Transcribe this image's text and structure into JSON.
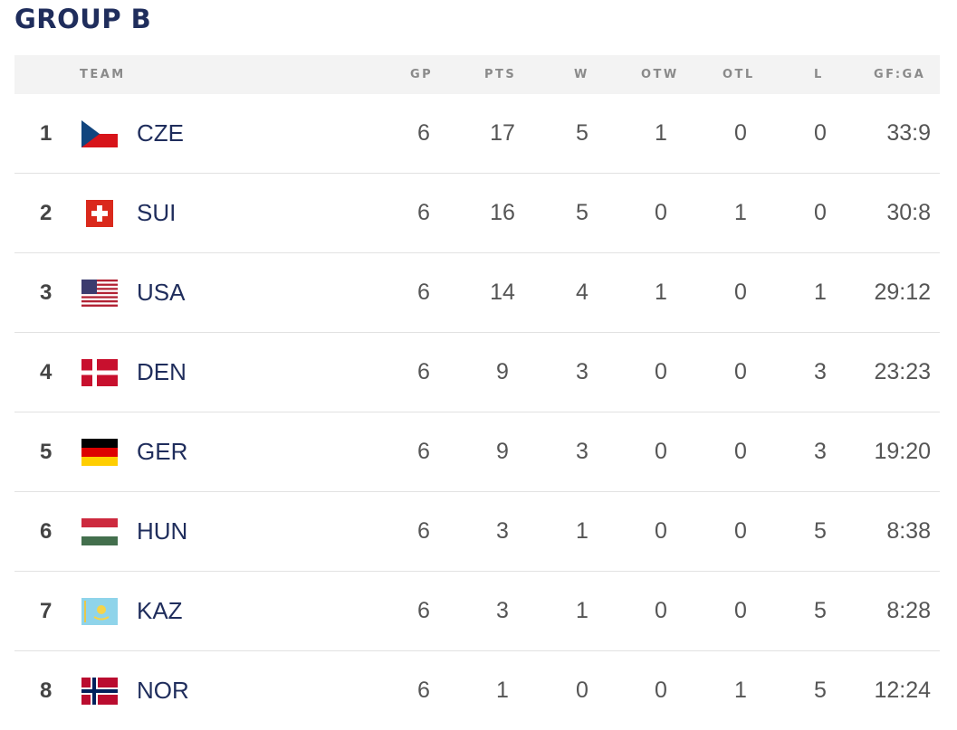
{
  "title": "GROUP B",
  "columns": {
    "team": "TEAM",
    "gp": "GP",
    "pts": "PTS",
    "w": "W",
    "otw": "OTW",
    "otl": "OTL",
    "l": "L",
    "gfga": "GF:GA"
  },
  "rows": [
    {
      "rank": "1",
      "flag": "cze-flag-icon",
      "team": "CZE",
      "gp": "6",
      "pts": "17",
      "w": "5",
      "otw": "1",
      "otl": "0",
      "l": "0",
      "gfga": "33:9"
    },
    {
      "rank": "2",
      "flag": "sui-flag-icon",
      "team": "SUI",
      "gp": "6",
      "pts": "16",
      "w": "5",
      "otw": "0",
      "otl": "1",
      "l": "0",
      "gfga": "30:8"
    },
    {
      "rank": "3",
      "flag": "usa-flag-icon",
      "team": "USA",
      "gp": "6",
      "pts": "14",
      "w": "4",
      "otw": "1",
      "otl": "0",
      "l": "1",
      "gfga": "29:12"
    },
    {
      "rank": "4",
      "flag": "den-flag-icon",
      "team": "DEN",
      "gp": "6",
      "pts": "9",
      "w": "3",
      "otw": "0",
      "otl": "0",
      "l": "3",
      "gfga": "23:23"
    },
    {
      "rank": "5",
      "flag": "ger-flag-icon",
      "team": "GER",
      "gp": "6",
      "pts": "9",
      "w": "3",
      "otw": "0",
      "otl": "0",
      "l": "3",
      "gfga": "19:20"
    },
    {
      "rank": "6",
      "flag": "hun-flag-icon",
      "team": "HUN",
      "gp": "6",
      "pts": "3",
      "w": "1",
      "otw": "0",
      "otl": "0",
      "l": "5",
      "gfga": "8:38"
    },
    {
      "rank": "7",
      "flag": "kaz-flag-icon",
      "team": "KAZ",
      "gp": "6",
      "pts": "3",
      "w": "1",
      "otw": "0",
      "otl": "0",
      "l": "5",
      "gfga": "8:28"
    },
    {
      "rank": "8",
      "flag": "nor-flag-icon",
      "team": "NOR",
      "gp": "6",
      "pts": "1",
      "w": "0",
      "otw": "0",
      "otl": "1",
      "l": "5",
      "gfga": "12:24"
    }
  ]
}
